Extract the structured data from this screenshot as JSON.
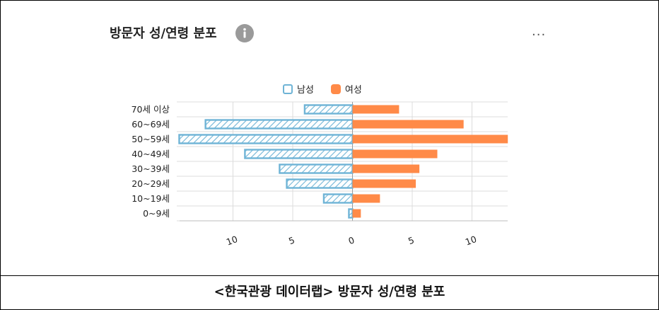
{
  "title": "방문자 성/연령 분포",
  "caption": "<한국관광 데이터랩> 방문자 성/연령 분포",
  "icons": {
    "info": "info-icon",
    "more": "more-icon"
  },
  "more_label": "...",
  "legend": {
    "male": "남성",
    "female": "여성"
  },
  "colors": {
    "male_stroke": "#6FB4D6",
    "female_fill": "#FF8A48"
  },
  "chart_data": {
    "type": "bar",
    "orientation": "horizontal",
    "categories": [
      "70세 이상",
      "60~69세",
      "50~59세",
      "40~49세",
      "30~39세",
      "20~29세",
      "10~19세",
      "0~9세"
    ],
    "series": [
      {
        "name": "남성",
        "values": [
          4.0,
          12.3,
          14.5,
          9.0,
          6.1,
          5.5,
          2.4,
          0.3
        ]
      },
      {
        "name": "여성",
        "values": [
          3.9,
          9.3,
          13.0,
          7.1,
          5.6,
          5.3,
          2.3,
          0.7
        ]
      }
    ],
    "x_ticks": [
      10,
      5,
      0,
      5,
      10
    ],
    "xlim": [
      -14.5,
      13.0
    ],
    "grid": true,
    "legend_position": "top-center"
  }
}
